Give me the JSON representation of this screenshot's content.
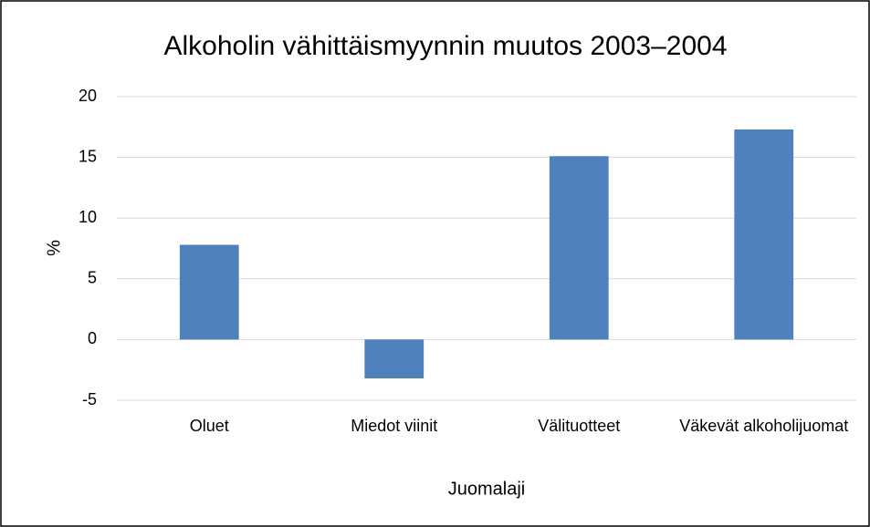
{
  "chart_data": {
    "type": "bar",
    "title": "Alkoholin vähittäismyynnin muutos 2003–2004",
    "x_label": "Juomalaji",
    "y_label": "%",
    "categories": [
      "Oluet",
      "Miedot viinit",
      "Välituotteet",
      "Väkevät alkoholijuomat"
    ],
    "values": [
      7.8,
      -3.2,
      15.1,
      17.3
    ],
    "color": "#4f81bd",
    "ylim": [
      -5,
      20
    ],
    "yticks": [
      -5,
      0,
      5,
      10,
      15,
      20
    ],
    "grid": true
  }
}
